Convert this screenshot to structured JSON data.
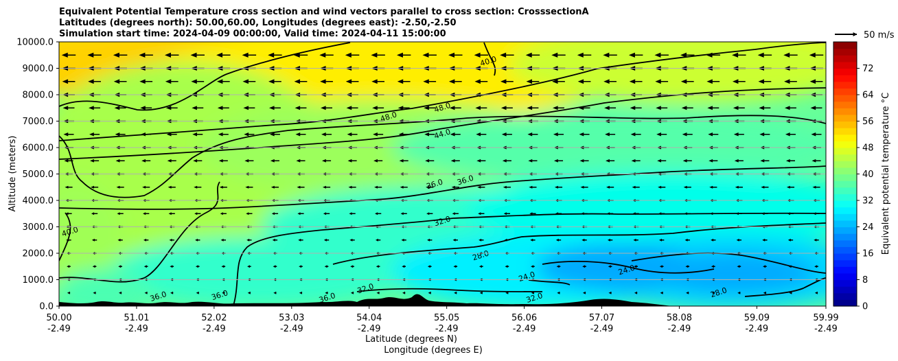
{
  "title_lines": [
    "Equivalent Potential Temperature cross section and wind vectors parallel to cross section: CrosssectionA",
    "Latitudes (degrees north): 50.00,60.00, Longitudes (degrees east): -2.50,-2.50",
    "Simulation start time: 2024-04-09 00:00:00, Valid time: 2024-04-11 15:00:00"
  ],
  "xlabel_lines": [
    "Latitude (degrees N)",
    "Longitude (degrees E)"
  ],
  "ylabel": "Altitude (meters)",
  "colorbar_label": "Equivalent potential temperature $^\\circ$C",
  "colorbar_label_display": "Equivalent potential temperature °C",
  "quiver_key_label": "50 m/s",
  "chart_data": {
    "type": "heatmap",
    "subtype": "cross-section filled contour with line contours and wind vectors",
    "x_ticks": [
      {
        "lat": "50.00",
        "lon": "-2.49"
      },
      {
        "lat": "51.01",
        "lon": "-2.49"
      },
      {
        "lat": "52.02",
        "lon": "-2.49"
      },
      {
        "lat": "53.03",
        "lon": "-2.49"
      },
      {
        "lat": "54.04",
        "lon": "-2.49"
      },
      {
        "lat": "55.05",
        "lon": "-2.49"
      },
      {
        "lat": "56.06",
        "lon": "-2.49"
      },
      {
        "lat": "57.07",
        "lon": "-2.49"
      },
      {
        "lat": "58.08",
        "lon": "-2.49"
      },
      {
        "lat": "59.09",
        "lon": "-2.49"
      },
      {
        "lat": "59.99",
        "lon": "-2.49"
      }
    ],
    "xlim": [
      50.0,
      59.99
    ],
    "y_ticks": [
      "0.0",
      "1000.0",
      "2000.0",
      "3000.0",
      "4000.0",
      "5000.0",
      "6000.0",
      "7000.0",
      "8000.0",
      "9000.0",
      "10000.0"
    ],
    "ylim": [
      0,
      10000
    ],
    "y_grid": true,
    "colorbar": {
      "ticks": [
        "0",
        "8",
        "16",
        "24",
        "32",
        "40",
        "48",
        "56",
        "64",
        "72"
      ],
      "range": [
        0,
        80
      ],
      "step": 2,
      "colormap": "jet"
    },
    "contour_labels": [
      {
        "text": "48.0",
        "lat": 54.3,
        "alt": 7100
      },
      {
        "text": "48.0",
        "lat": 55.0,
        "alt": 7450
      },
      {
        "text": "44.0",
        "lat": 55.0,
        "alt": 6450
      },
      {
        "text": "36.0",
        "lat": 54.9,
        "alt": 4550
      },
      {
        "text": "36.0",
        "lat": 55.3,
        "alt": 4700
      },
      {
        "text": "32.0",
        "lat": 55.0,
        "alt": 3150
      },
      {
        "text": "28.0",
        "lat": 55.5,
        "alt": 1850
      },
      {
        "text": "40.0",
        "lat": 50.15,
        "alt": 2750
      },
      {
        "text": "24.0",
        "lat": 56.1,
        "alt": 1050
      },
      {
        "text": "24.0",
        "lat": 57.4,
        "alt": 1300
      },
      {
        "text": "28.0",
        "lat": 58.6,
        "alt": 450
      },
      {
        "text": "32.0",
        "lat": 54.0,
        "alt": 600
      },
      {
        "text": "36.0",
        "lat": 51.3,
        "alt": 300
      },
      {
        "text": "36.0",
        "lat": 52.1,
        "alt": 350
      },
      {
        "text": "36.0",
        "lat": 53.5,
        "alt": 250
      },
      {
        "text": "32.0",
        "lat": 56.2,
        "alt": 250
      },
      {
        "text": "40.0",
        "lat": 55.6,
        "alt": 9200
      }
    ],
    "wind": {
      "direction": "toward lower latitude (right-to-left)",
      "key_speed_ms": 50,
      "speed_by_altitude_ms": [
        {
          "alt": 200,
          "speed": 6
        },
        {
          "alt": 2000,
          "speed": 10
        },
        {
          "alt": 4000,
          "speed": 16
        },
        {
          "alt": 6000,
          "speed": 22
        },
        {
          "alt": 8000,
          "speed": 28
        },
        {
          "alt": 9500,
          "speed": 32
        }
      ]
    }
  }
}
